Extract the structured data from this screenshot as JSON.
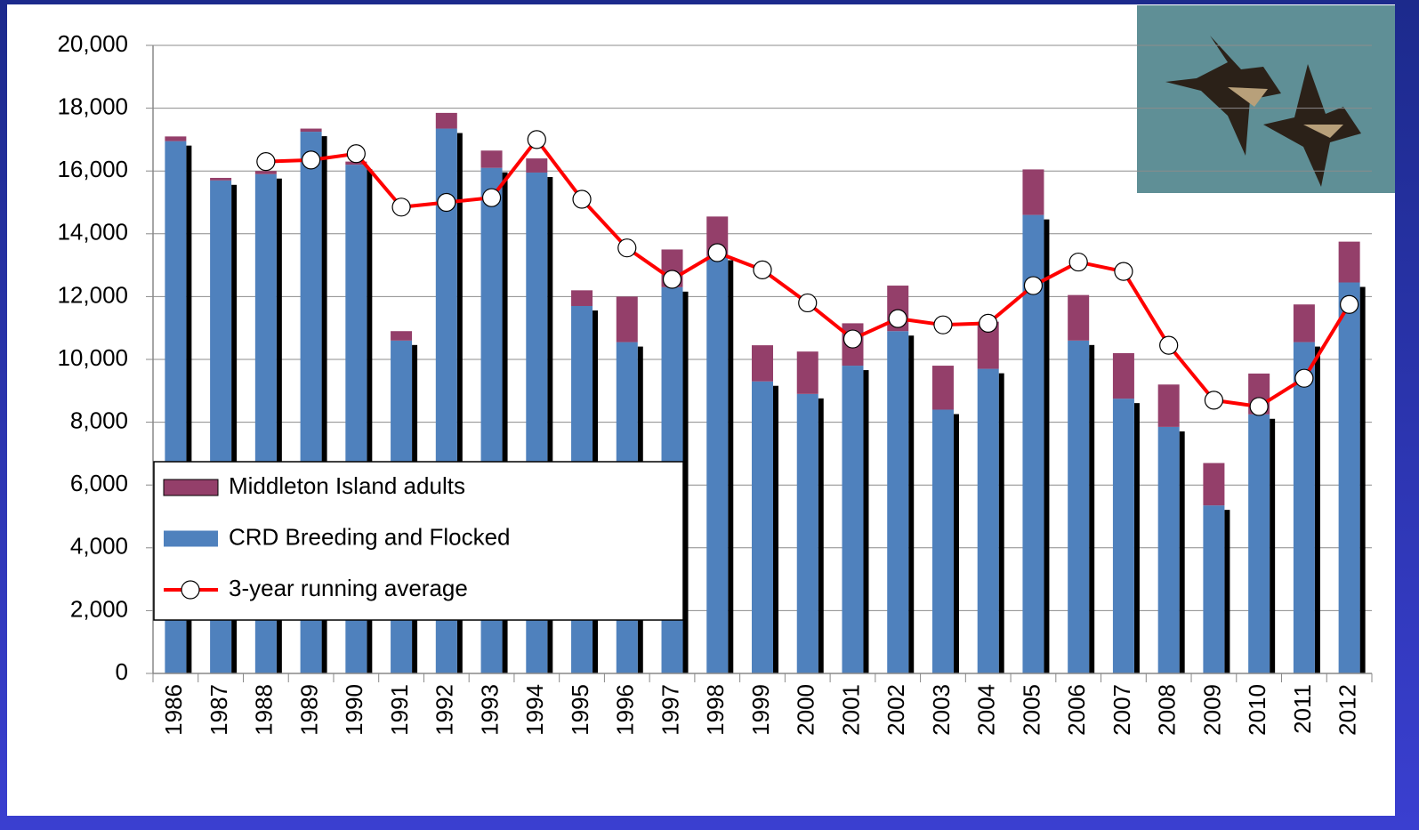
{
  "chart_data": {
    "type": "bar-line",
    "categories": [
      "1986",
      "1987",
      "1988",
      "1989",
      "1990",
      "1991",
      "1992",
      "1993",
      "1994",
      "1995",
      "1996",
      "1997",
      "1998",
      "1999",
      "2000",
      "2001",
      "2002",
      "2003",
      "2004",
      "2005",
      "2006",
      "2007",
      "2008",
      "2009",
      "2010",
      "2011",
      "2012"
    ],
    "series": [
      {
        "name": "Middleton Island adults",
        "type": "bar",
        "color": "#943f6a",
        "values": [
          150,
          80,
          100,
          100,
          100,
          300,
          500,
          550,
          450,
          500,
          1450,
          1200,
          1250,
          1150,
          1350,
          1350,
          1450,
          1400,
          1500,
          1450,
          1450,
          1450,
          1350,
          1350,
          1300,
          1200,
          1300
        ]
      },
      {
        "name": "CRD Breeding and Flocked",
        "type": "bar",
        "color": "#4f81bd",
        "values": [
          16950,
          15700,
          15900,
          17250,
          16200,
          10600,
          17350,
          16100,
          15950,
          11700,
          10550,
          12300,
          13300,
          9300,
          8900,
          9800,
          10900,
          8400,
          9700,
          14600,
          10600,
          8750,
          7850,
          5350,
          8250,
          10550,
          12450
        ]
      },
      {
        "name": "3-year running average",
        "type": "line",
        "color": "#ff0000",
        "values": [
          null,
          null,
          16300,
          16350,
          16550,
          14850,
          15000,
          15150,
          17000,
          15100,
          13550,
          12550,
          13400,
          12850,
          11800,
          10650,
          11300,
          11100,
          11150,
          12350,
          13100,
          12800,
          10450,
          8700,
          8500,
          9400,
          11750
        ]
      }
    ],
    "ylim": [
      0,
      20000
    ],
    "yticks": [
      0,
      {
        "value": 2000,
        "label": "2,000"
      },
      {
        "value": 4000,
        "label": "4,000"
      },
      {
        "value": 6000,
        "label": "6,000"
      },
      {
        "value": 8000,
        "label": "8,000"
      },
      {
        "value": 10000,
        "label": "10,000"
      },
      {
        "value": 12000,
        "label": "12,000"
      },
      {
        "value": 14000,
        "label": "14,000"
      },
      {
        "value": 16000,
        "label": "16,000"
      },
      {
        "value": 18000,
        "label": "18,000"
      },
      {
        "value": 20000,
        "label": "20,000"
      }
    ],
    "grid": true,
    "legend": "lower left"
  }
}
